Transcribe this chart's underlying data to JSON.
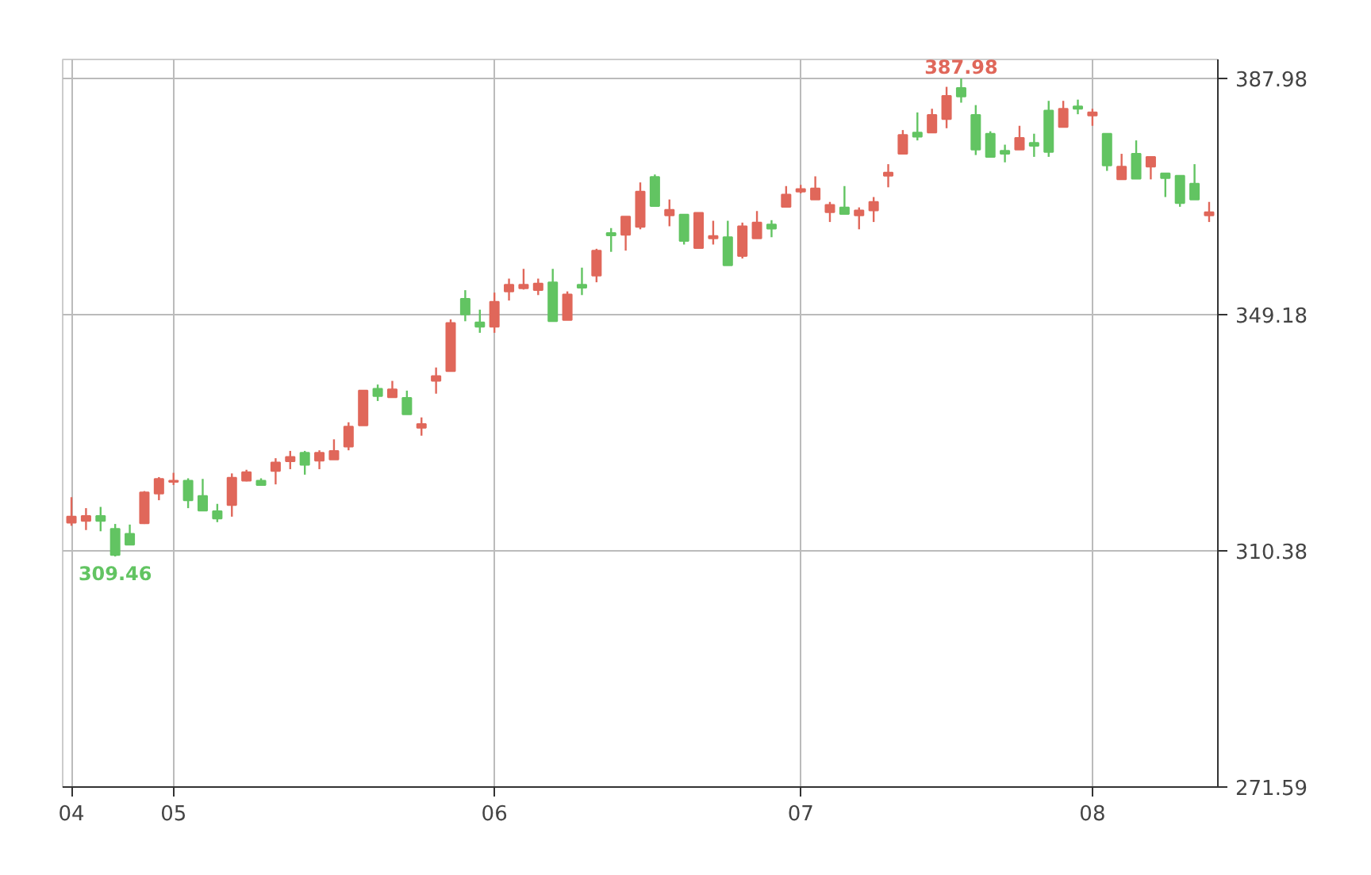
{
  "chart_data": {
    "type": "candlestick",
    "categories": [
      "04",
      null,
      null,
      null,
      null,
      null,
      null,
      "05",
      null,
      null,
      null,
      null,
      null,
      null,
      null,
      null,
      null,
      null,
      null,
      null,
      null,
      null,
      null,
      null,
      null,
      null,
      null,
      null,
      null,
      "06",
      null,
      null,
      null,
      null,
      null,
      null,
      null,
      null,
      null,
      null,
      null,
      null,
      null,
      null,
      null,
      null,
      null,
      null,
      null,
      null,
      "07",
      null,
      null,
      null,
      null,
      null,
      null,
      null,
      null,
      null,
      null,
      null,
      null,
      null,
      null,
      null,
      null,
      null,
      null,
      null,
      "08",
      null,
      null,
      null,
      null,
      null,
      null,
      null,
      null
    ],
    "ohlc": [
      [
        315.0,
        319.2,
        314.5,
        316.0
      ],
      [
        315.3,
        317.4,
        313.8,
        316.1
      ],
      [
        316.1,
        317.6,
        313.6,
        315.3
      ],
      [
        314.0,
        314.8,
        309.46,
        309.7
      ],
      [
        313.2,
        314.7,
        311.4,
        311.4
      ],
      [
        314.9,
        320.2,
        314.8,
        320.0
      ],
      [
        319.8,
        322.5,
        318.7,
        322.2
      ],
      [
        321.7,
        323.2,
        321.2,
        321.9
      ],
      [
        321.9,
        322.3,
        317.4,
        318.7
      ],
      [
        319.4,
        322.2,
        317.0,
        317.0
      ],
      [
        316.9,
        318.1,
        315.1,
        315.7
      ],
      [
        317.9,
        323.1,
        316.0,
        322.4
      ],
      [
        321.9,
        323.7,
        321.8,
        323.3
      ],
      [
        321.9,
        322.3,
        321.2,
        321.2
      ],
      [
        323.5,
        325.6,
        321.3,
        324.9
      ],
      [
        325.1,
        326.8,
        323.8,
        325.8
      ],
      [
        326.5,
        326.8,
        322.9,
        324.5
      ],
      [
        325.2,
        326.9,
        323.8,
        326.5
      ],
      [
        325.4,
        328.7,
        325.4,
        326.8
      ],
      [
        327.5,
        331.5,
        326.9,
        330.8
      ],
      [
        331.0,
        336.8,
        331.0,
        336.7
      ],
      [
        337.0,
        337.7,
        335.0,
        335.8
      ],
      [
        335.6,
        338.3,
        335.6,
        336.9
      ],
      [
        335.5,
        336.7,
        332.8,
        332.8
      ],
      [
        330.6,
        332.3,
        329.3,
        331.2
      ],
      [
        338.3,
        340.5,
        336.2,
        339.1
      ],
      [
        339.9,
        348.4,
        339.9,
        347.8
      ],
      [
        351.8,
        353.2,
        348.1,
        349.2
      ],
      [
        347.9,
        350.0,
        346.2,
        347.2
      ],
      [
        347.2,
        352.8,
        346.2,
        351.3
      ],
      [
        353.0,
        355.1,
        351.5,
        354.1
      ],
      [
        353.5,
        356.7,
        353.3,
        354.1
      ],
      [
        353.2,
        355.1,
        352.4,
        354.3
      ],
      [
        354.5,
        356.7,
        348.1,
        348.1
      ],
      [
        348.3,
        353.0,
        348.3,
        352.5
      ],
      [
        354.1,
        356.9,
        352.4,
        353.6
      ],
      [
        355.6,
        360.0,
        354.5,
        359.7
      ],
      [
        362.6,
        363.4,
        359.5,
        362.2
      ],
      [
        362.3,
        365.3,
        359.7,
        365.3
      ],
      [
        363.6,
        370.9,
        363.2,
        369.4
      ],
      [
        371.8,
        372.2,
        367.0,
        367.0
      ],
      [
        365.5,
        368.1,
        363.7,
        366.4
      ],
      [
        365.6,
        365.7,
        360.7,
        361.3
      ],
      [
        360.1,
        365.9,
        360.1,
        365.9
      ],
      [
        361.7,
        364.6,
        360.7,
        362.1
      ],
      [
        361.9,
        364.6,
        357.3,
        357.3
      ],
      [
        358.8,
        364.3,
        358.4,
        363.7
      ],
      [
        361.7,
        366.2,
        361.7,
        364.3
      ],
      [
        364.0,
        364.7,
        361.9,
        363.3
      ],
      [
        366.9,
        370.3,
        366.9,
        368.9
      ],
      [
        369.4,
        370.5,
        369.1,
        369.8
      ],
      [
        368.1,
        371.9,
        368.1,
        369.9
      ],
      [
        366.0,
        367.7,
        364.4,
        367.2
      ],
      [
        366.8,
        370.3,
        365.7,
        365.7
      ],
      [
        365.5,
        366.8,
        363.2,
        366.3
      ],
      [
        366.3,
        368.5,
        364.4,
        367.7
      ],
      [
        372.0,
        373.9,
        370.1,
        372.5
      ],
      [
        375.6,
        379.5,
        375.6,
        378.7
      ],
      [
        379.1,
        382.4,
        377.8,
        378.4
      ],
      [
        379.1,
        383.0,
        379.1,
        382.0
      ],
      [
        381.3,
        386.6,
        379.8,
        385.1
      ],
      [
        386.4,
        387.98,
        384.0,
        385.0
      ],
      [
        382.0,
        383.6,
        375.4,
        376.3
      ],
      [
        378.9,
        379.3,
        375.1,
        375.1
      ],
      [
        376.1,
        377.1,
        374.2,
        375.6
      ],
      [
        376.3,
        380.2,
        376.3,
        378.2
      ],
      [
        377.4,
        378.9,
        375.1,
        376.9
      ],
      [
        382.7,
        384.3,
        375.1,
        375.9
      ],
      [
        380.0,
        384.3,
        380.0,
        383.0
      ],
      [
        383.4,
        384.5,
        382.1,
        383.0
      ],
      [
        381.9,
        383.0,
        380.2,
        382.4
      ],
      [
        378.9,
        378.9,
        372.8,
        373.7
      ],
      [
        371.4,
        375.6,
        371.4,
        373.5
      ],
      [
        375.6,
        377.8,
        371.5,
        371.5
      ],
      [
        373.5,
        375.1,
        371.4,
        375.1
      ],
      [
        372.4,
        372.4,
        368.5,
        371.6
      ],
      [
        372.0,
        372.0,
        366.9,
        367.5
      ],
      [
        370.7,
        373.9,
        368.1,
        368.1
      ],
      [
        365.5,
        367.7,
        364.4,
        366.0
      ]
    ],
    "colors": [
      "#e0675a",
      "#e0675a",
      "#62c462",
      "#62c462",
      "#62c462",
      "#e0675a",
      "#e0675a",
      "#e0675a",
      "#62c462",
      "#62c462",
      "#62c462",
      "#e0675a",
      "#e0675a",
      "#62c462",
      "#e0675a",
      "#e0675a",
      "#62c462",
      "#e0675a",
      "#e0675a",
      "#e0675a",
      "#e0675a",
      "#62c462",
      "#e0675a",
      "#62c462",
      "#e0675a",
      "#e0675a",
      "#e0675a",
      "#62c462",
      "#62c462",
      "#e0675a",
      "#e0675a",
      "#e0675a",
      "#e0675a",
      "#62c462",
      "#e0675a",
      "#62c462",
      "#e0675a",
      "#62c462",
      "#e0675a",
      "#e0675a",
      "#62c462",
      "#e0675a",
      "#62c462",
      "#e0675a",
      "#e0675a",
      "#62c462",
      "#e0675a",
      "#e0675a",
      "#62c462",
      "#e0675a",
      "#e0675a",
      "#e0675a",
      "#e0675a",
      "#62c462",
      "#e0675a",
      "#e0675a",
      "#e0675a",
      "#e0675a",
      "#62c462",
      "#e0675a",
      "#e0675a",
      "#62c462",
      "#62c462",
      "#62c462",
      "#62c462",
      "#e0675a",
      "#62c462",
      "#62c462",
      "#e0675a",
      "#62c462",
      "#e0675a",
      "#62c462",
      "#e0675a",
      "#62c462",
      "#e0675a",
      "#62c462",
      "#62c462",
      "#62c462",
      "#e0675a"
    ],
    "ylim": [
      271.59,
      391.1
    ],
    "yticks": [
      271.59,
      310.38,
      349.18,
      387.98
    ],
    "grid": true,
    "annotations": [
      {
        "text": "387.98",
        "y": 387.98
      },
      {
        "text": "309.46",
        "y": 309.46
      }
    ]
  }
}
